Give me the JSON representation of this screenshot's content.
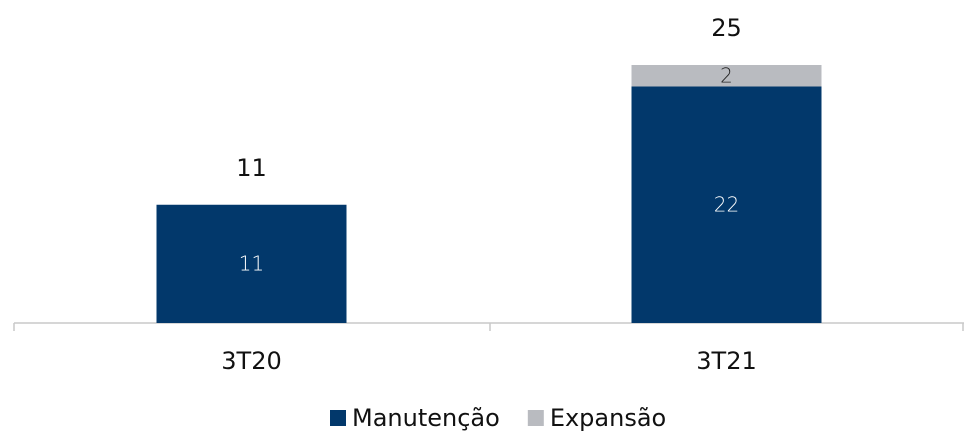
{
  "chart_data": {
    "type": "stacked-bar",
    "categories": [
      "3T20",
      "3T21"
    ],
    "series": [
      {
        "name": "Manutenção",
        "color": "#02386b",
        "values": [
          11,
          22
        ]
      },
      {
        "name": "Expansão",
        "color": "#b9bbc0",
        "values": [
          null,
          2
        ]
      }
    ],
    "totals": [
      11,
      25
    ],
    "legend": "bottom"
  }
}
